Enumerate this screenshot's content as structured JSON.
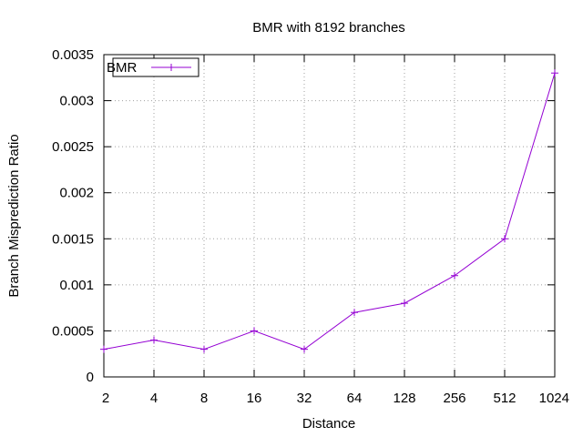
{
  "chart_data": {
    "type": "line",
    "title": "BMR with 8192 branches",
    "xlabel": "Distance",
    "ylabel": "Branch Misprediction Ratio",
    "x": [
      "2",
      "4",
      "8",
      "16",
      "32",
      "64",
      "128",
      "256",
      "512",
      "1024"
    ],
    "x_scale": "log2",
    "ylim": [
      0,
      0.0035
    ],
    "y_ticks": [
      "0",
      "0.0005",
      "0.001",
      "0.0015",
      "0.002",
      "0.0025",
      "0.003",
      "0.0035"
    ],
    "grid": true,
    "legend_position": "top-left",
    "series": [
      {
        "name": "BMR",
        "color": "#9400d3",
        "marker": "plus",
        "values": [
          0.0003,
          0.0004,
          0.0003,
          0.0005,
          0.0003,
          0.0007,
          0.0008,
          0.0011,
          0.0015,
          0.0033
        ]
      }
    ]
  }
}
